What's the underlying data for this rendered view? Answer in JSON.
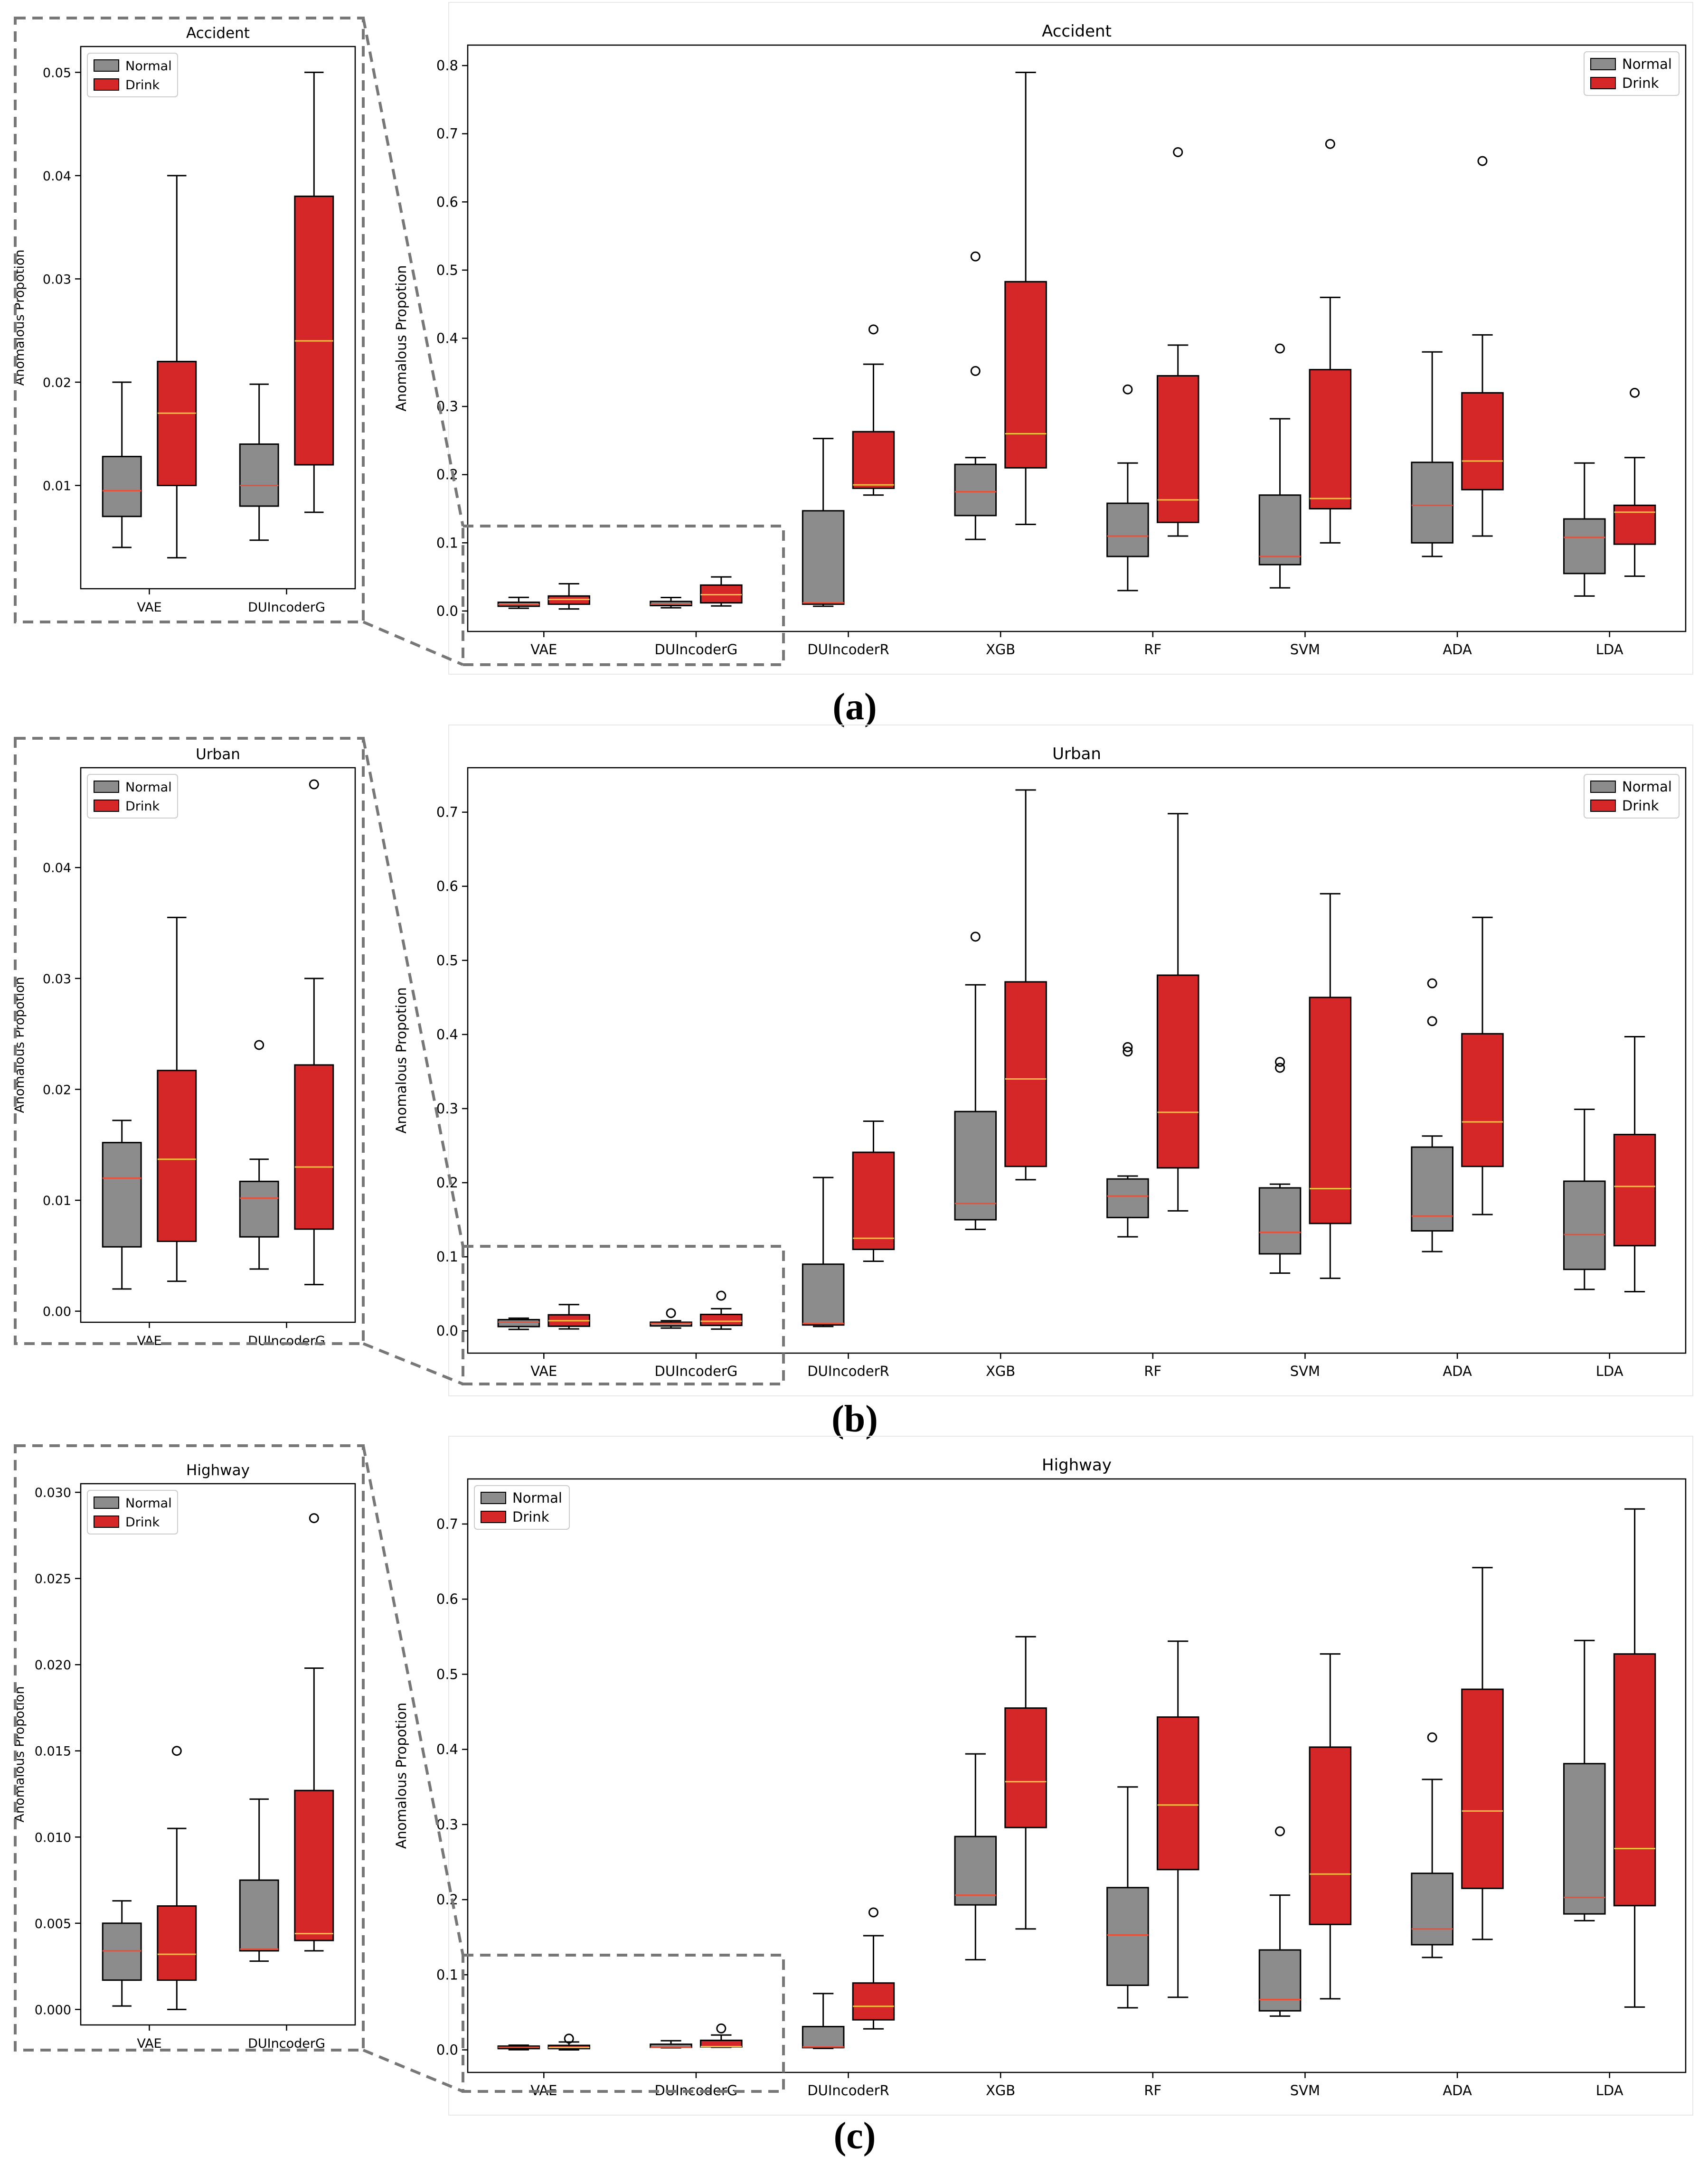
{
  "figure": {
    "y_axis_label": "Anomalous Propotion",
    "colors": {
      "normal": "#8c8c8c",
      "drink": "#d62728",
      "median_normal": "#e8503a",
      "median_drink": "#f0c040",
      "zoom": "#777777"
    }
  },
  "chart_data": [
    {
      "type": "box",
      "panel": "a",
      "panel_label": "(a)",
      "title": "Accident",
      "ylabel": "Anomalous Propotion",
      "legend": [
        "Normal",
        "Drink"
      ],
      "legend_position": "top-right",
      "categories": [
        "VAE",
        "DUIncoderG",
        "DUIncoderR",
        "XGB",
        "RF",
        "SVM",
        "ADA",
        "LDA"
      ],
      "ylim": [
        -0.03,
        0.83
      ],
      "yticks": [
        0.0,
        0.1,
        0.2,
        0.3,
        0.4,
        0.5,
        0.6,
        0.7,
        0.8
      ],
      "ytick_labels": [
        "0.0",
        "0.1",
        "0.2",
        "0.3",
        "0.4",
        "0.5",
        "0.6",
        "0.7",
        "0.8"
      ],
      "series": [
        {
          "name": "Normal",
          "boxes": [
            {
              "lo": 0.004,
              "q1": 0.007,
              "med": 0.0095,
              "q3": 0.0128,
              "hi": 0.02,
              "outliers": []
            },
            {
              "lo": 0.0047,
              "q1": 0.008,
              "med": 0.01,
              "q3": 0.014,
              "hi": 0.0198,
              "outliers": []
            },
            {
              "lo": 0.007,
              "q1": 0.01,
              "med": 0.012,
              "q3": 0.147,
              "hi": 0.253,
              "outliers": []
            },
            {
              "lo": 0.105,
              "q1": 0.14,
              "med": 0.175,
              "q3": 0.215,
              "hi": 0.225,
              "outliers": [
                0.352,
                0.52
              ]
            },
            {
              "lo": 0.03,
              "q1": 0.08,
              "med": 0.11,
              "q3": 0.158,
              "hi": 0.217,
              "outliers": [
                0.325
              ]
            },
            {
              "lo": 0.034,
              "q1": 0.068,
              "med": 0.08,
              "q3": 0.17,
              "hi": 0.282,
              "outliers": [
                0.385
              ]
            },
            {
              "lo": 0.08,
              "q1": 0.1,
              "med": 0.155,
              "q3": 0.218,
              "hi": 0.38,
              "outliers": []
            },
            {
              "lo": 0.022,
              "q1": 0.055,
              "med": 0.108,
              "q3": 0.135,
              "hi": 0.217,
              "outliers": []
            }
          ]
        },
        {
          "name": "Drink",
          "boxes": [
            {
              "lo": 0.003,
              "q1": 0.01,
              "med": 0.017,
              "q3": 0.022,
              "hi": 0.04,
              "outliers": []
            },
            {
              "lo": 0.0074,
              "q1": 0.012,
              "med": 0.024,
              "q3": 0.038,
              "hi": 0.05,
              "outliers": []
            },
            {
              "lo": 0.17,
              "q1": 0.18,
              "med": 0.185,
              "q3": 0.263,
              "hi": 0.362,
              "outliers": [
                0.413
              ]
            },
            {
              "lo": 0.127,
              "q1": 0.21,
              "med": 0.26,
              "q3": 0.483,
              "hi": 0.79,
              "outliers": []
            },
            {
              "lo": 0.11,
              "q1": 0.13,
              "med": 0.163,
              "q3": 0.345,
              "hi": 0.39,
              "outliers": [
                0.673
              ]
            },
            {
              "lo": 0.1,
              "q1": 0.15,
              "med": 0.165,
              "q3": 0.354,
              "hi": 0.46,
              "outliers": [
                0.685
              ]
            },
            {
              "lo": 0.11,
              "q1": 0.178,
              "med": 0.22,
              "q3": 0.32,
              "hi": 0.405,
              "outliers": [
                0.66
              ]
            },
            {
              "lo": 0.051,
              "q1": 0.098,
              "med": 0.145,
              "q3": 0.155,
              "hi": 0.225,
              "outliers": [
                0.32
              ]
            }
          ]
        }
      ],
      "inset": {
        "title": "Accident",
        "ylabel": "Anomalous Propotion",
        "categories": [
          "VAE",
          "DUIncoderG"
        ],
        "ylim": [
          0.0,
          0.0525
        ],
        "yticks": [
          0.01,
          0.02,
          0.03,
          0.04,
          0.05
        ],
        "ytick_labels": [
          "0.01",
          "0.02",
          "0.03",
          "0.04",
          "0.05"
        ]
      }
    },
    {
      "type": "box",
      "panel": "b",
      "panel_label": "(b)",
      "title": "Urban",
      "ylabel": "Anomalous Propotion",
      "legend": [
        "Normal",
        "Drink"
      ],
      "legend_position": "top-right",
      "categories": [
        "VAE",
        "DUIncoderG",
        "DUIncoderR",
        "XGB",
        "RF",
        "SVM",
        "ADA",
        "LDA"
      ],
      "ylim": [
        -0.03,
        0.76
      ],
      "yticks": [
        0.0,
        0.1,
        0.2,
        0.3,
        0.4,
        0.5,
        0.6,
        0.7
      ],
      "ytick_labels": [
        "0.0",
        "0.1",
        "0.2",
        "0.3",
        "0.4",
        "0.5",
        "0.6",
        "0.7"
      ],
      "series": [
        {
          "name": "Normal",
          "boxes": [
            {
              "lo": 0.002,
              "q1": 0.0058,
              "med": 0.012,
              "q3": 0.0152,
              "hi": 0.0172,
              "outliers": []
            },
            {
              "lo": 0.0038,
              "q1": 0.0067,
              "med": 0.0102,
              "q3": 0.0117,
              "hi": 0.0137,
              "outliers": [
                0.024
              ]
            },
            {
              "lo": 0.006,
              "q1": 0.008,
              "med": 0.01,
              "q3": 0.09,
              "hi": 0.207,
              "outliers": []
            },
            {
              "lo": 0.137,
              "q1": 0.15,
              "med": 0.172,
              "q3": 0.296,
              "hi": 0.467,
              "outliers": [
                0.532
              ]
            },
            {
              "lo": 0.127,
              "q1": 0.153,
              "med": 0.182,
              "q3": 0.205,
              "hi": 0.209,
              "outliers": [
                0.377,
                0.383
              ]
            },
            {
              "lo": 0.078,
              "q1": 0.104,
              "med": 0.133,
              "q3": 0.193,
              "hi": 0.198,
              "outliers": [
                0.355,
                0.363
              ]
            },
            {
              "lo": 0.107,
              "q1": 0.135,
              "med": 0.155,
              "q3": 0.248,
              "hi": 0.263,
              "outliers": [
                0.418,
                0.469
              ]
            },
            {
              "lo": 0.056,
              "q1": 0.083,
              "med": 0.13,
              "q3": 0.202,
              "hi": 0.299,
              "outliers": []
            }
          ]
        },
        {
          "name": "Drink",
          "boxes": [
            {
              "lo": 0.0027,
              "q1": 0.0063,
              "med": 0.0137,
              "q3": 0.0217,
              "hi": 0.0355,
              "outliers": []
            },
            {
              "lo": 0.0024,
              "q1": 0.0074,
              "med": 0.013,
              "q3": 0.0222,
              "hi": 0.03,
              "outliers": [
                0.0475
              ]
            },
            {
              "lo": 0.094,
              "q1": 0.11,
              "med": 0.125,
              "q3": 0.241,
              "hi": 0.283,
              "outliers": []
            },
            {
              "lo": 0.204,
              "q1": 0.222,
              "med": 0.34,
              "q3": 0.471,
              "hi": 0.73,
              "outliers": []
            },
            {
              "lo": 0.162,
              "q1": 0.22,
              "med": 0.295,
              "q3": 0.48,
              "hi": 0.698,
              "outliers": []
            },
            {
              "lo": 0.071,
              "q1": 0.145,
              "med": 0.192,
              "q3": 0.45,
              "hi": 0.59,
              "outliers": []
            },
            {
              "lo": 0.157,
              "q1": 0.222,
              "med": 0.282,
              "q3": 0.401,
              "hi": 0.558,
              "outliers": []
            },
            {
              "lo": 0.053,
              "q1": 0.115,
              "med": 0.195,
              "q3": 0.265,
              "hi": 0.397,
              "outliers": []
            }
          ]
        }
      ],
      "inset": {
        "title": "Urban",
        "ylabel": "Anomalous Propotion",
        "categories": [
          "VAE",
          "DUIncoderG"
        ],
        "ylim": [
          -0.001,
          0.049
        ],
        "yticks": [
          0.0,
          0.01,
          0.02,
          0.03,
          0.04
        ],
        "ytick_labels": [
          "0.00",
          "0.01",
          "0.02",
          "0.03",
          "0.04"
        ]
      }
    },
    {
      "type": "box",
      "panel": "c",
      "panel_label": "(c)",
      "title": "Highway",
      "ylabel": "Anomalous Propotion",
      "legend": [
        "Normal",
        "Drink"
      ],
      "legend_position": "top-left",
      "categories": [
        "VAE",
        "DUIncoderG",
        "DUIncoderR",
        "XGB",
        "RF",
        "SVM",
        "ADA",
        "LDA"
      ],
      "ylim": [
        -0.03,
        0.76
      ],
      "yticks": [
        0.0,
        0.1,
        0.2,
        0.3,
        0.4,
        0.5,
        0.6,
        0.7
      ],
      "ytick_labels": [
        "0.0",
        "0.1",
        "0.2",
        "0.3",
        "0.4",
        "0.5",
        "0.6",
        "0.7"
      ],
      "series": [
        {
          "name": "Normal",
          "boxes": [
            {
              "lo": 0.0002,
              "q1": 0.0017,
              "med": 0.0034,
              "q3": 0.005,
              "hi": 0.0063,
              "outliers": []
            },
            {
              "lo": 0.0028,
              "q1": 0.0034,
              "med": 0.0035,
              "q3": 0.0075,
              "hi": 0.0122,
              "outliers": []
            },
            {
              "lo": 0.002,
              "q1": 0.003,
              "med": 0.004,
              "q3": 0.031,
              "hi": 0.075,
              "outliers": []
            },
            {
              "lo": 0.12,
              "q1": 0.193,
              "med": 0.206,
              "q3": 0.284,
              "hi": 0.394,
              "outliers": []
            },
            {
              "lo": 0.056,
              "q1": 0.086,
              "med": 0.153,
              "q3": 0.216,
              "hi": 0.35,
              "outliers": []
            },
            {
              "lo": 0.045,
              "q1": 0.052,
              "med": 0.067,
              "q3": 0.133,
              "hi": 0.206,
              "outliers": [
                0.291
              ]
            },
            {
              "lo": 0.123,
              "q1": 0.14,
              "med": 0.161,
              "q3": 0.235,
              "hi": 0.36,
              "outliers": [
                0.416
              ]
            },
            {
              "lo": 0.172,
              "q1": 0.181,
              "med": 0.203,
              "q3": 0.381,
              "hi": 0.545,
              "outliers": []
            }
          ]
        },
        {
          "name": "Drink",
          "boxes": [
            {
              "lo": 0.0,
              "q1": 0.0017,
              "med": 0.0032,
              "q3": 0.006,
              "hi": 0.0105,
              "outliers": [
                0.015
              ]
            },
            {
              "lo": 0.0034,
              "q1": 0.004,
              "med": 0.0044,
              "q3": 0.0127,
              "hi": 0.0198,
              "outliers": [
                0.0285
              ]
            },
            {
              "lo": 0.028,
              "q1": 0.04,
              "med": 0.058,
              "q3": 0.089,
              "hi": 0.152,
              "outliers": [
                0.183
              ]
            },
            {
              "lo": 0.161,
              "q1": 0.296,
              "med": 0.357,
              "q3": 0.455,
              "hi": 0.55,
              "outliers": []
            },
            {
              "lo": 0.07,
              "q1": 0.24,
              "med": 0.326,
              "q3": 0.443,
              "hi": 0.544,
              "outliers": []
            },
            {
              "lo": 0.068,
              "q1": 0.167,
              "med": 0.234,
              "q3": 0.403,
              "hi": 0.527,
              "outliers": []
            },
            {
              "lo": 0.147,
              "q1": 0.215,
              "med": 0.318,
              "q3": 0.48,
              "hi": 0.642,
              "outliers": []
            },
            {
              "lo": 0.057,
              "q1": 0.192,
              "med": 0.268,
              "q3": 0.527,
              "hi": 0.72,
              "outliers": []
            }
          ]
        }
      ],
      "inset": {
        "title": "Highway",
        "ylabel": "Anomalous Propotion",
        "categories": [
          "VAE",
          "DUIncoderG"
        ],
        "ylim": [
          -0.0009,
          0.0305
        ],
        "yticks": [
          0.0,
          0.005,
          0.01,
          0.015,
          0.02,
          0.025,
          0.03
        ],
        "ytick_labels": [
          "0.000",
          "0.005",
          "0.010",
          "0.015",
          "0.020",
          "0.025",
          "0.030"
        ]
      }
    }
  ]
}
